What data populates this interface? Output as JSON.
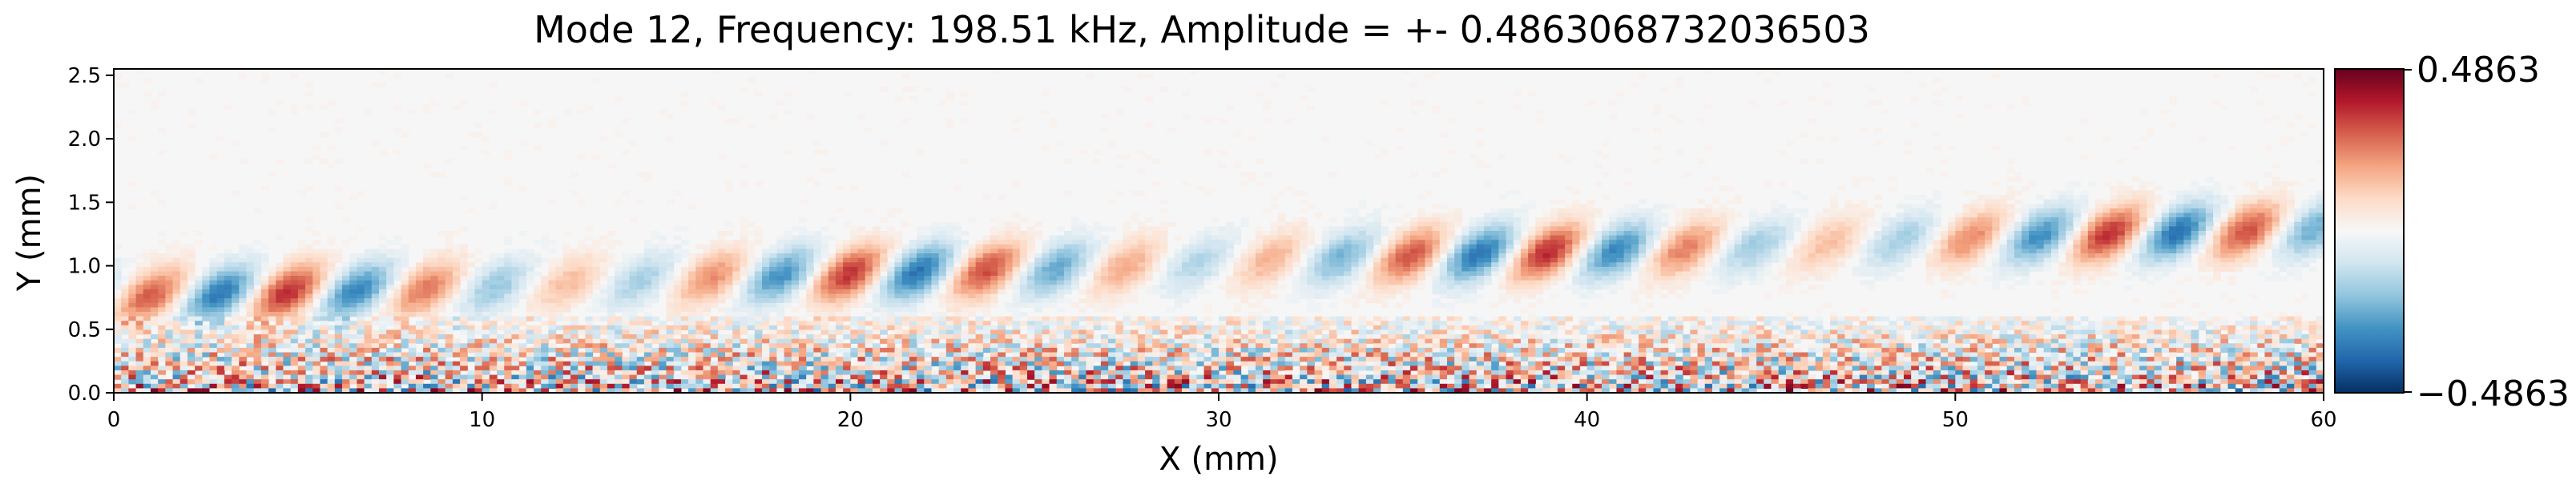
{
  "chart_data": {
    "type": "heatmap",
    "title": "Mode 12, Frequency: 198.51 kHz, Amplitude = +- 0.4863068732036503",
    "xlabel": "X (mm)",
    "ylabel": "Y (mm)",
    "xlim": [
      0,
      60
    ],
    "ylim": [
      0,
      2.55
    ],
    "x_ticks": [
      0,
      10,
      20,
      30,
      40,
      50,
      60
    ],
    "x_tick_labels": [
      "0",
      "10",
      "20",
      "30",
      "40",
      "50",
      "60"
    ],
    "y_ticks": [
      0.0,
      0.5,
      1.0,
      1.5,
      2.0,
      2.5
    ],
    "y_tick_labels": [
      "0.0",
      "0.5",
      "1.0",
      "1.5",
      "2.0",
      "2.5"
    ],
    "colormap": "RdBu_r",
    "colorbar": {
      "vmin": -0.4863,
      "vmax": 0.4863,
      "tick_labels": [
        "0.4863",
        "−0.4863"
      ]
    },
    "field_description_values": {
      "wave_band_y_range_mm": [
        0.6,
        1.4
      ],
      "wave_packet_spacing_mm": 3.8,
      "noise_region_y_max_mm": 0.6
    }
  }
}
